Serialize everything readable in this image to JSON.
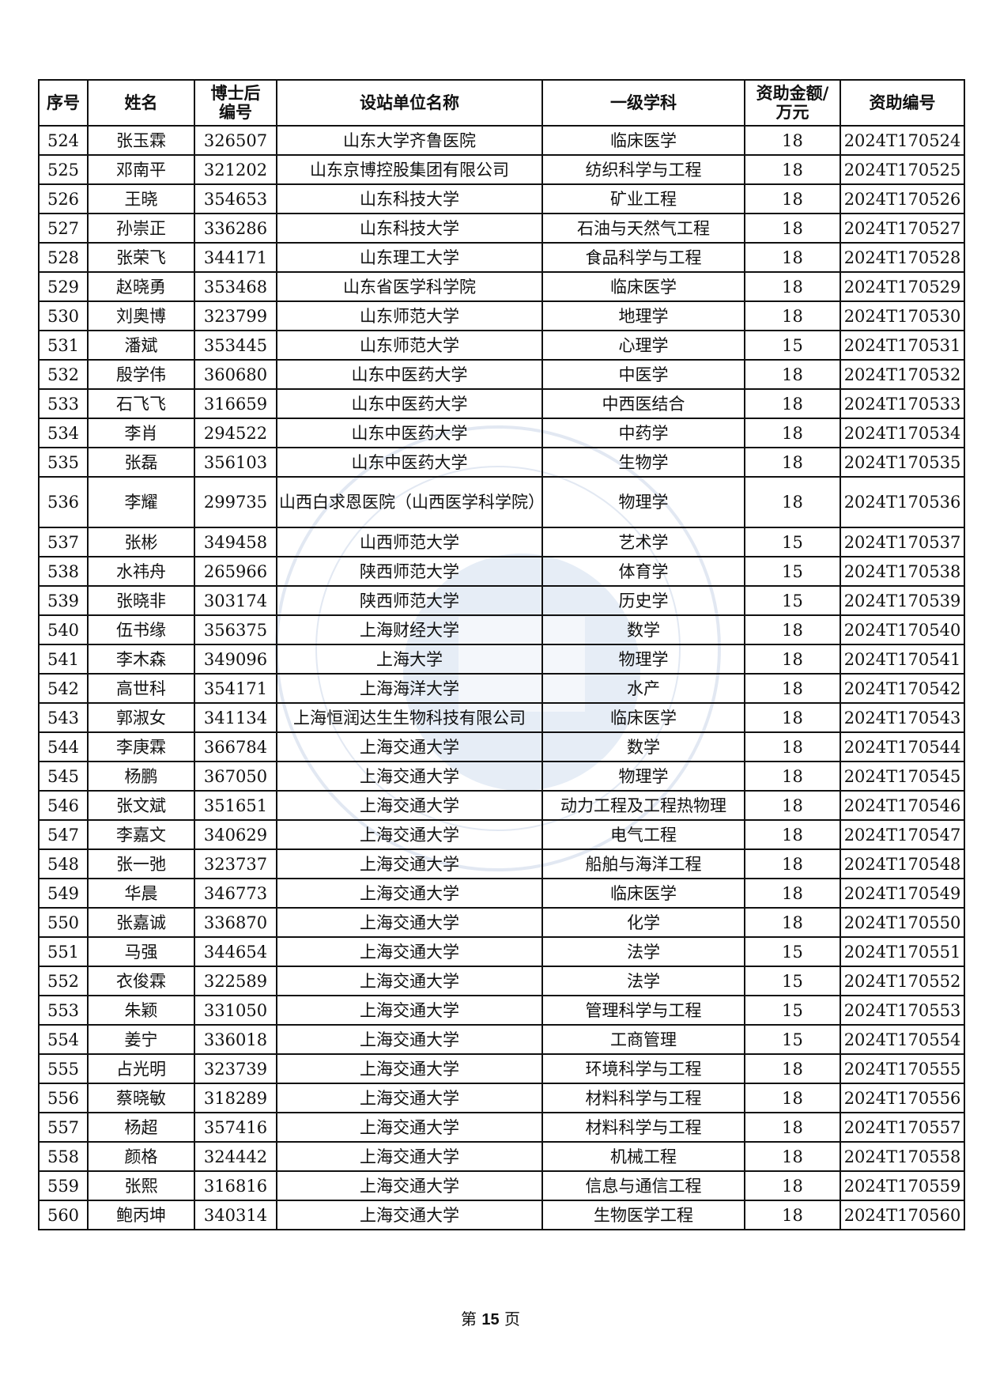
{
  "columns": [
    "序号",
    "姓名",
    "博士后编号",
    "设站单位名称",
    "一级学科",
    "资助金额/万元",
    "资助编号"
  ],
  "header": {
    "c0": "序号",
    "c1": "姓名",
    "c2a": "博士后",
    "c2b": "编号",
    "c3": "设站单位名称",
    "c4": "一级学科",
    "c5a": "资助金额/",
    "c5b": "万元",
    "c6": "资助编号"
  },
  "rows": [
    [
      "524",
      "张玉霖",
      "326507",
      "山东大学齐鲁医院",
      "临床医学",
      "18",
      "2024T170524"
    ],
    [
      "525",
      "邓南平",
      "321202",
      "山东京博控股集团有限公司",
      "纺织科学与工程",
      "18",
      "2024T170525"
    ],
    [
      "526",
      "王晓",
      "354653",
      "山东科技大学",
      "矿业工程",
      "18",
      "2024T170526"
    ],
    [
      "527",
      "孙崇正",
      "336286",
      "山东科技大学",
      "石油与天然气工程",
      "18",
      "2024T170527"
    ],
    [
      "528",
      "张荣飞",
      "344171",
      "山东理工大学",
      "食品科学与工程",
      "18",
      "2024T170528"
    ],
    [
      "529",
      "赵晓勇",
      "353468",
      "山东省医学科学院",
      "临床医学",
      "18",
      "2024T170529"
    ],
    [
      "530",
      "刘奥博",
      "323799",
      "山东师范大学",
      "地理学",
      "18",
      "2024T170530"
    ],
    [
      "531",
      "潘斌",
      "353445",
      "山东师范大学",
      "心理学",
      "15",
      "2024T170531"
    ],
    [
      "532",
      "殷学伟",
      "360680",
      "山东中医药大学",
      "中医学",
      "18",
      "2024T170532"
    ],
    [
      "533",
      "石飞飞",
      "316659",
      "山东中医药大学",
      "中西医结合",
      "18",
      "2024T170533"
    ],
    [
      "534",
      "李肖",
      "294522",
      "山东中医药大学",
      "中药学",
      "18",
      "2024T170534"
    ],
    [
      "535",
      "张磊",
      "356103",
      "山东中医药大学",
      "生物学",
      "18",
      "2024T170535"
    ],
    [
      "536",
      "李耀",
      "299735",
      "山西白求恩医院（山西医学科学院）",
      "物理学",
      "18",
      "2024T170536"
    ],
    [
      "537",
      "张彬",
      "349458",
      "山西师范大学",
      "艺术学",
      "15",
      "2024T170537"
    ],
    [
      "538",
      "水祎舟",
      "265966",
      "陕西师范大学",
      "体育学",
      "15",
      "2024T170538"
    ],
    [
      "539",
      "张晓非",
      "303174",
      "陕西师范大学",
      "历史学",
      "15",
      "2024T170539"
    ],
    [
      "540",
      "伍书缘",
      "356375",
      "上海财经大学",
      "数学",
      "18",
      "2024T170540"
    ],
    [
      "541",
      "李木森",
      "349096",
      "上海大学",
      "物理学",
      "18",
      "2024T170541"
    ],
    [
      "542",
      "高世科",
      "354171",
      "上海海洋大学",
      "水产",
      "18",
      "2024T170542"
    ],
    [
      "543",
      "郭淑女",
      "341134",
      "上海恒润达生生物科技有限公司",
      "临床医学",
      "18",
      "2024T170543"
    ],
    [
      "544",
      "李庚霖",
      "366784",
      "上海交通大学",
      "数学",
      "18",
      "2024T170544"
    ],
    [
      "545",
      "杨鹏",
      "367050",
      "上海交通大学",
      "物理学",
      "18",
      "2024T170545"
    ],
    [
      "546",
      "张文斌",
      "351651",
      "上海交通大学",
      "动力工程及工程热物理",
      "18",
      "2024T170546"
    ],
    [
      "547",
      "李嘉文",
      "340629",
      "上海交通大学",
      "电气工程",
      "18",
      "2024T170547"
    ],
    [
      "548",
      "张一弛",
      "323737",
      "上海交通大学",
      "船舶与海洋工程",
      "18",
      "2024T170548"
    ],
    [
      "549",
      "华晨",
      "346773",
      "上海交通大学",
      "临床医学",
      "18",
      "2024T170549"
    ],
    [
      "550",
      "张嘉诚",
      "336870",
      "上海交通大学",
      "化学",
      "18",
      "2024T170550"
    ],
    [
      "551",
      "马强",
      "344654",
      "上海交通大学",
      "法学",
      "15",
      "2024T170551"
    ],
    [
      "552",
      "衣俊霖",
      "322589",
      "上海交通大学",
      "法学",
      "15",
      "2024T170552"
    ],
    [
      "553",
      "朱颖",
      "331050",
      "上海交通大学",
      "管理科学与工程",
      "15",
      "2024T170553"
    ],
    [
      "554",
      "姜宁",
      "336018",
      "上海交通大学",
      "工商管理",
      "15",
      "2024T170554"
    ],
    [
      "555",
      "占光明",
      "323739",
      "上海交通大学",
      "环境科学与工程",
      "18",
      "2024T170555"
    ],
    [
      "556",
      "蔡晓敏",
      "318289",
      "上海交通大学",
      "材料科学与工程",
      "18",
      "2024T170556"
    ],
    [
      "557",
      "杨超",
      "357416",
      "上海交通大学",
      "材料科学与工程",
      "18",
      "2024T170557"
    ],
    [
      "558",
      "颜格",
      "324442",
      "上海交通大学",
      "机械工程",
      "18",
      "2024T170558"
    ],
    [
      "559",
      "张熙",
      "316816",
      "上海交通大学",
      "信息与通信工程",
      "18",
      "2024T170559"
    ],
    [
      "560",
      "鲍丙坤",
      "340314",
      "上海交通大学",
      "生物医学工程",
      "18",
      "2024T170560"
    ]
  ],
  "footer": {
    "prefix": "第",
    "page": "15",
    "suffix": "页"
  },
  "watermark": {
    "text": "CHINA POSTDOCTORAL SCIENCE FOUNDATION",
    "color": "#7f9cc8"
  }
}
